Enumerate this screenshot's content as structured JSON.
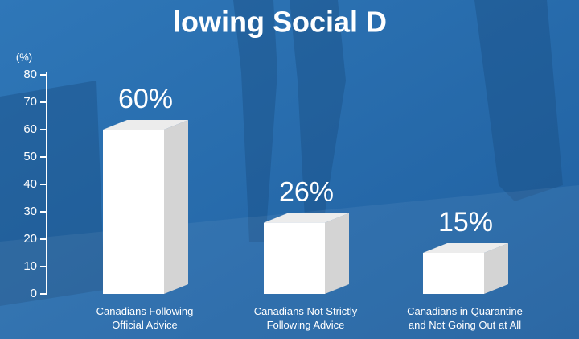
{
  "chart_data": {
    "type": "bar3d",
    "title": "lowing Social D",
    "ylabel": "(%)",
    "categories": [
      "Canadians Following\nOfficial Advice",
      "Canadians Not Strictly\nFollowing Advice",
      "Canadians in Quarantine\nand Not Going Out at All"
    ],
    "values": [
      60,
      26,
      15
    ],
    "value_labels": [
      "60%",
      "26%",
      "15%"
    ],
    "color": "#ffffff",
    "ylim": [
      0,
      80
    ],
    "yticks": [
      0,
      10,
      20,
      30,
      40,
      50,
      60,
      70,
      80
    ],
    "grid": false
  }
}
